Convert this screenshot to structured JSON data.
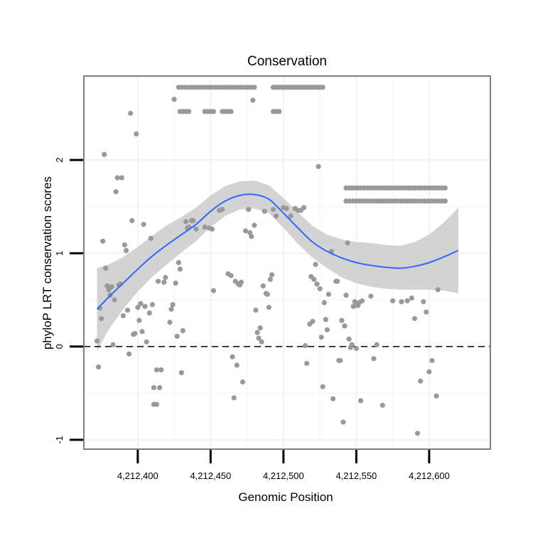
{
  "chart_data": {
    "type": "scatter",
    "title": "Conservation",
    "xlabel": "Genomic Position",
    "ylabel": "phyloP LRT conservation scores",
    "xlim": [
      4212363,
      4212642
    ],
    "ylim": [
      -1.1,
      2.9
    ],
    "x_ticks": [
      4212400,
      4212450,
      4212500,
      4212550,
      4212600
    ],
    "x_tick_labels": [
      "4,212,400",
      "4,212,450",
      "4,212,500",
      "4,212,550",
      "4,212,600"
    ],
    "y_ticks": [
      -1,
      0,
      1,
      2
    ],
    "y_tick_labels": [
      "-1",
      "0",
      "1",
      "2"
    ],
    "grid": true,
    "reference_line": {
      "y": 0,
      "style": "dashed"
    },
    "colors": {
      "points": "#999999",
      "smooth_line": "#3366ff",
      "confidence_band": "#d3d3d3",
      "grid": "#f2f2f2",
      "panel_border": "#7f7f7f"
    },
    "series": [
      {
        "name": "scores",
        "points": [
          [
            4212372,
            0.06
          ],
          [
            4212373,
            -0.22
          ],
          [
            4212374,
            0.41
          ],
          [
            4212375,
            0.3
          ],
          [
            4212376,
            1.13
          ],
          [
            4212377,
            2.06
          ],
          [
            4212378,
            0.84
          ],
          [
            4212379,
            0.65
          ],
          [
            4212380,
            0.61
          ],
          [
            4212381,
            0.55
          ],
          [
            4212382,
            0.64
          ],
          [
            4212383,
            0.02
          ],
          [
            4212384,
            0.5
          ],
          [
            4212385,
            1.66
          ],
          [
            4212386,
            1.81
          ],
          [
            4212387,
            0.66
          ],
          [
            4212388,
            0.67
          ],
          [
            4212389,
            1.81
          ],
          [
            4212390,
            0.33
          ],
          [
            4212391,
            1.09
          ],
          [
            4212392,
            1.03
          ],
          [
            4212393,
            0.39
          ],
          [
            4212394,
            -0.08
          ],
          [
            4212395,
            2.5
          ],
          [
            4212396,
            1.35
          ],
          [
            4212397,
            0.13
          ],
          [
            4212398,
            0.14
          ],
          [
            4212399,
            2.28
          ],
          [
            4212400,
            0.42
          ],
          [
            4212401,
            0.28
          ],
          [
            4212402,
            0.46
          ],
          [
            4212403,
            0.16
          ],
          [
            4212404,
            1.31
          ],
          [
            4212405,
            0.43
          ],
          [
            4212406,
            0.05
          ],
          [
            4212408,
            0.36
          ],
          [
            4212409,
            1.16
          ],
          [
            4212410,
            0.45
          ],
          [
            4212411,
            -0.44
          ],
          [
            4212411,
            -0.62
          ],
          [
            4212413,
            -0.25
          ],
          [
            4212413,
            -0.62
          ],
          [
            4212414,
            0.7
          ],
          [
            4212415,
            -0.44
          ],
          [
            4212416,
            -0.25
          ],
          [
            4212418,
            0.69
          ],
          [
            4212419,
            0.74
          ],
          [
            4212422,
            0.26
          ],
          [
            4212423,
            0.4
          ],
          [
            4212424,
            0.45
          ],
          [
            4212425,
            2.65
          ],
          [
            4212426,
            0.68
          ],
          [
            4212427,
            0.11
          ],
          [
            4212428,
            0.9
          ],
          [
            4212429,
            0.83
          ],
          [
            4212430,
            -0.28
          ],
          [
            4212431,
            0.17
          ],
          [
            4212433,
            1.34
          ],
          [
            4212434,
            1.27
          ],
          [
            4212435,
            1.28
          ],
          [
            4212437,
            1.35
          ],
          [
            4212438,
            1.35
          ],
          [
            4212440,
            1.26
          ],
          [
            4212446,
            1.28
          ],
          [
            4212449,
            1.27
          ],
          [
            4212451,
            1.26
          ],
          [
            4212452,
            0.6
          ],
          [
            4212456,
            1.46
          ],
          [
            4212458,
            1.47
          ],
          [
            4212462,
            0.78
          ],
          [
            4212464,
            0.76
          ],
          [
            4212465,
            -0.11
          ],
          [
            4212466,
            -0.55
          ],
          [
            4212467,
            0.7
          ],
          [
            4212468,
            -0.2
          ],
          [
            4212469,
            0.67
          ],
          [
            4212470,
            0.66
          ],
          [
            4212471,
            0.69
          ],
          [
            4212472,
            -0.38
          ],
          [
            4212474,
            1.24
          ],
          [
            4212476,
            1.47
          ],
          [
            4212477,
            1.22
          ],
          [
            4212478,
            1.18
          ],
          [
            4212479,
            2.64
          ],
          [
            4212480,
            1.3
          ],
          [
            4212481,
            0.39
          ],
          [
            4212482,
            0.15
          ],
          [
            4212483,
            0.09
          ],
          [
            4212484,
            0.2
          ],
          [
            4212485,
            0.05
          ],
          [
            4212486,
            0.65
          ],
          [
            4212487,
            1.45
          ],
          [
            4212488,
            0.57
          ],
          [
            4212489,
            0.56
          ],
          [
            4212490,
            0.42
          ],
          [
            4212491,
            0.72
          ],
          [
            4212492,
            0.77
          ],
          [
            4212493,
            1.47
          ],
          [
            4212495,
            1.4
          ],
          [
            4212500,
            1.49
          ],
          [
            4212502,
            1.48
          ],
          [
            4212505,
            1.4
          ],
          [
            4212508,
            1.48
          ],
          [
            4212510,
            1.46
          ],
          [
            4212512,
            1.46
          ],
          [
            4212514,
            1.49
          ],
          [
            4212515,
            0.01
          ],
          [
            4212516,
            -0.18
          ],
          [
            4212518,
            0.24
          ],
          [
            4212519,
            0.75
          ],
          [
            4212520,
            0.27
          ],
          [
            4212521,
            0.72
          ],
          [
            4212522,
            0.88
          ],
          [
            4212523,
            0.67
          ],
          [
            4212524,
            1.93
          ],
          [
            4212525,
            0.62
          ],
          [
            4212526,
            0.1
          ],
          [
            4212527,
            -0.43
          ],
          [
            4212528,
            0.47
          ],
          [
            4212529,
            0.29
          ],
          [
            4212530,
            0.18
          ],
          [
            4212531,
            0.56
          ],
          [
            4212533,
            1.02
          ],
          [
            4212534,
            -0.56
          ],
          [
            4212536,
            0.7
          ],
          [
            4212537,
            0.7
          ],
          [
            4212538,
            -0.15
          ],
          [
            4212539,
            -0.15
          ],
          [
            4212540,
            0.28
          ],
          [
            4212541,
            -0.81
          ],
          [
            4212542,
            0.22
          ],
          [
            4212543,
            0.55
          ],
          [
            4212544,
            1.11
          ],
          [
            4212545,
            0.08
          ],
          [
            4212546,
            -0.01
          ],
          [
            4212547,
            0.02
          ],
          [
            4212548,
            0.43
          ],
          [
            4212549,
            0.48
          ],
          [
            4212550,
            -0.02
          ],
          [
            4212551,
            0.44
          ],
          [
            4212552,
            0.47
          ],
          [
            4212553,
            -0.58
          ],
          [
            4212554,
            0.49
          ],
          [
            4212560,
            0.54
          ],
          [
            4212562,
            -0.13
          ],
          [
            4212564,
            0.02
          ],
          [
            4212568,
            -0.63
          ],
          [
            4212575,
            0.49
          ],
          [
            4212581,
            0.48
          ],
          [
            4212585,
            0.49
          ],
          [
            4212588,
            0.52
          ],
          [
            4212590,
            0.3
          ],
          [
            4212592,
            -0.93
          ],
          [
            4212594,
            -0.37
          ],
          [
            4212596,
            0.48
          ],
          [
            4212598,
            0.37
          ],
          [
            4212600,
            -0.27
          ],
          [
            4212602,
            -0.15
          ],
          [
            4212605,
            -0.53
          ],
          [
            4212606,
            0.61
          ]
        ],
        "clusters": [
          {
            "x_start": 4212428,
            "x_end": 4212480,
            "count": 24,
            "y": 2.78
          },
          {
            "x_start": 4212429,
            "x_end": 4212435,
            "count": 4,
            "y": 2.52
          },
          {
            "x_start": 4212446,
            "x_end": 4212452,
            "count": 4,
            "y": 2.52
          },
          {
            "x_start": 4212458,
            "x_end": 4212464,
            "count": 4,
            "y": 2.52
          },
          {
            "x_start": 4212493,
            "x_end": 4212527,
            "count": 30,
            "y": 2.78
          },
          {
            "x_start": 4212493,
            "x_end": 4212497,
            "count": 3,
            "y": 2.52
          },
          {
            "x_start": 4212543,
            "x_end": 4212611,
            "count": 34,
            "y": 1.7
          },
          {
            "x_start": 4212543,
            "x_end": 4212611,
            "count": 30,
            "y": 1.56
          }
        ]
      },
      {
        "name": "smooth",
        "x": [
          4212372,
          4212380,
          4212390,
          4212400,
          4212410,
          4212420,
          4212430,
          4212440,
          4212450,
          4212460,
          4212470,
          4212480,
          4212490,
          4212500,
          4212510,
          4212520,
          4212530,
          4212540,
          4212550,
          4212560,
          4212570,
          4212580,
          4212590,
          4212600,
          4212610,
          4212620
        ],
        "y": [
          0.4,
          0.53,
          0.68,
          0.83,
          0.97,
          1.09,
          1.2,
          1.31,
          1.45,
          1.56,
          1.62,
          1.63,
          1.58,
          1.43,
          1.27,
          1.12,
          1.02,
          0.95,
          0.9,
          0.87,
          0.85,
          0.84,
          0.86,
          0.9,
          0.96,
          1.03
        ],
        "lower": [
          -0.05,
          0.18,
          0.4,
          0.59,
          0.75,
          0.88,
          1.01,
          1.13,
          1.28,
          1.4,
          1.47,
          1.48,
          1.43,
          1.27,
          1.1,
          0.95,
          0.84,
          0.74,
          0.68,
          0.64,
          0.62,
          0.61,
          0.61,
          0.61,
          0.6,
          0.57
        ],
        "upper": [
          0.84,
          0.88,
          0.96,
          1.07,
          1.19,
          1.3,
          1.39,
          1.49,
          1.62,
          1.72,
          1.77,
          1.78,
          1.73,
          1.59,
          1.44,
          1.29,
          1.2,
          1.15,
          1.12,
          1.11,
          1.09,
          1.08,
          1.12,
          1.2,
          1.33,
          1.49
        ]
      }
    ]
  }
}
